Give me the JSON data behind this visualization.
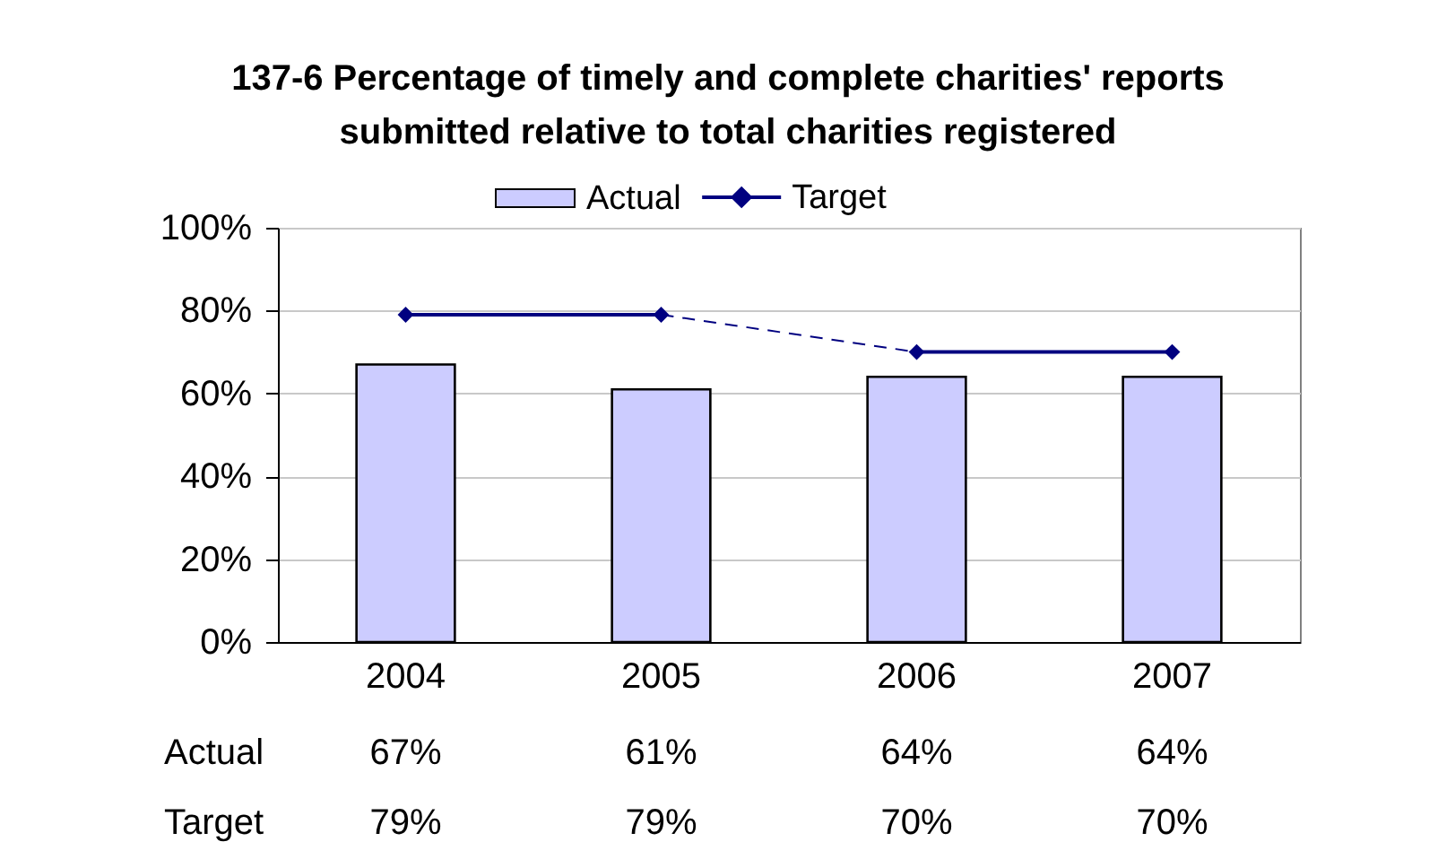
{
  "chart_data": {
    "type": "bar",
    "title": "137-6 Percentage of timely and complete charities' reports submitted relative to total charities registered",
    "categories": [
      "2004",
      "2005",
      "2006",
      "2007"
    ],
    "series": [
      {
        "name": "Actual",
        "color": "#ccccff",
        "values": [
          67,
          61,
          64,
          64
        ],
        "value_labels": [
          "67%",
          "61%",
          "64%",
          "64%"
        ]
      },
      {
        "name": "Target",
        "type": "scatter",
        "marker": "diamond",
        "color": "#000080",
        "values": [
          79,
          79,
          70,
          70
        ],
        "value_labels": [
          "79%",
          "79%",
          "70%",
          "70%"
        ]
      },
      {
        "type": "line",
        "marker": "none",
        "line_style": "solid",
        "color": "#000080",
        "values": [
          79,
          79,
          null,
          null
        ]
      },
      {
        "type": "line",
        "marker": "none",
        "line_style": "dashed",
        "color": "#000080",
        "values": [
          null,
          79,
          70,
          null
        ]
      },
      {
        "type": "line",
        "marker": "none",
        "line_style": "solid",
        "color": "#000080",
        "values": [
          null,
          null,
          70,
          70
        ]
      }
    ],
    "ylim": [
      0,
      100
    ],
    "yticks": [
      {
        "value": 0,
        "label": "0%"
      },
      {
        "value": 20,
        "label": "20%"
      },
      {
        "value": 40,
        "label": "40%"
      },
      {
        "value": 60,
        "label": "60%"
      },
      {
        "value": 80,
        "label": "80%"
      },
      {
        "value": 100,
        "label": "100%"
      }
    ],
    "grid": "y",
    "legend": "top"
  }
}
